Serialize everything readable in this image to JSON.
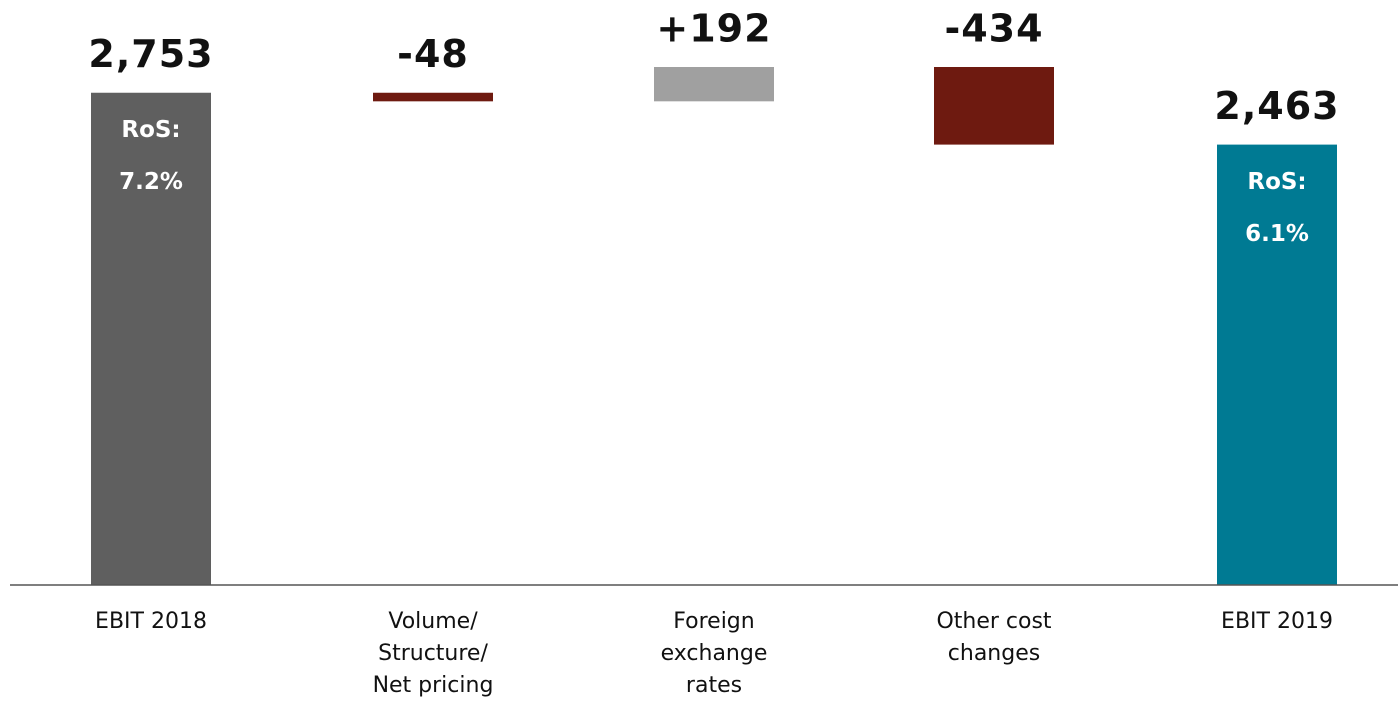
{
  "chart_data": {
    "type": "waterfall",
    "categories": [
      [
        "EBIT 2018"
      ],
      [
        "Volume/",
        "Structure/",
        "Net pricing"
      ],
      [
        "Foreign",
        "exchange",
        "rates"
      ],
      [
        "Other cost",
        "changes"
      ],
      [
        "EBIT 2019"
      ]
    ],
    "values": [
      2753,
      -48,
      192,
      -434,
      2463
    ],
    "value_labels": [
      "2,753",
      "-48",
      "+192",
      "-434",
      "2,463"
    ],
    "colors": [
      "#5f5f5f",
      "#6e1a10",
      "#a0a0a0",
      "#6e1a10",
      "#007a93"
    ],
    "annotations": [
      [
        "RoS:",
        "7.2%"
      ],
      null,
      null,
      null,
      [
        "RoS:",
        "6.1%"
      ]
    ]
  }
}
